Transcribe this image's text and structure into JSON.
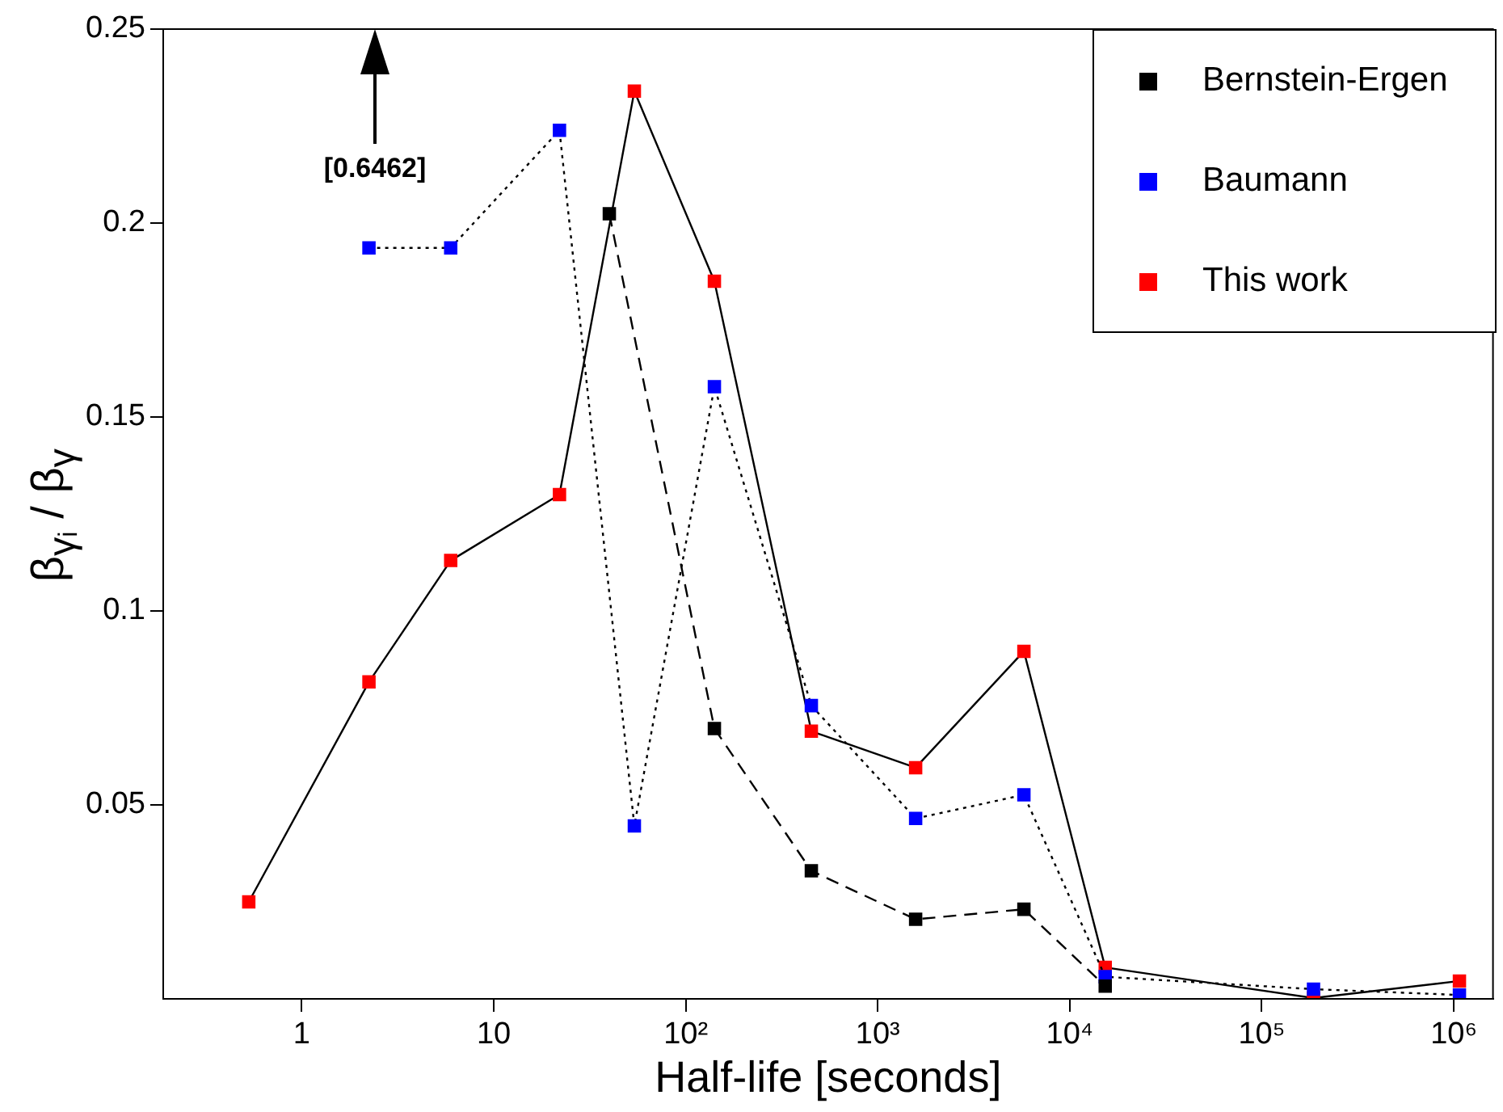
{
  "chart_data": {
    "type": "line",
    "xlabel": "Half-life [seconds]",
    "ylabel": "β$_{γᵢ}$ / β$_{γ}$",
    "log": "x",
    "xlim": [
      0.19,
      1600000
    ],
    "ylim": [
      0,
      0.25
    ],
    "xticks": [
      1,
      10,
      {
        "value": 100,
        "label": "10²"
      },
      {
        "value": 1000,
        "label": "10³"
      },
      {
        "value": 10000,
        "label": "10⁴"
      },
      {
        "value": 100000,
        "label": "10⁵"
      },
      {
        "value": 1000000,
        "label": "10⁶"
      }
    ],
    "yticks": [
      0.05,
      0.1,
      0.15,
      0.2,
      0.25
    ],
    "grid": false,
    "legend": "top right",
    "marker": "square",
    "annotations": [
      "[0.6462]"
    ],
    "series": [
      {
        "name": "Bernstein-Ergen",
        "color": "#000000",
        "line_style": "dashed",
        "x": [
          40,
          141,
          451,
          1575,
          5770,
          15300
        ],
        "values": [
          0.2024,
          0.0697,
          0.033,
          0.0205,
          0.0231,
          0.0033
        ]
      },
      {
        "name": "Baumann",
        "color": "#0000ff",
        "line_style": "dotted",
        "x": [
          2.24,
          5.97,
          22,
          54,
          141,
          451,
          1575,
          5770,
          15300,
          186000,
          1070000
        ],
        "values": [
          0.1936,
          0.1936,
          0.2239,
          0.0446,
          0.1578,
          0.0756,
          0.0465,
          0.0526,
          0.0057,
          0.0025,
          0.001
        ]
      },
      {
        "name": "This work",
        "color": "#ff0000",
        "line_style": "solid",
        "x": [
          0.53,
          2.24,
          5.97,
          22,
          54,
          141,
          451,
          1575,
          5770,
          15300,
          186000,
          1070000
        ],
        "values": [
          0.025,
          0.0817,
          0.113,
          0.13,
          0.234,
          0.185,
          0.069,
          0.0596,
          0.0896,
          0.0081,
          0.0002,
          0.0046
        ]
      }
    ]
  }
}
